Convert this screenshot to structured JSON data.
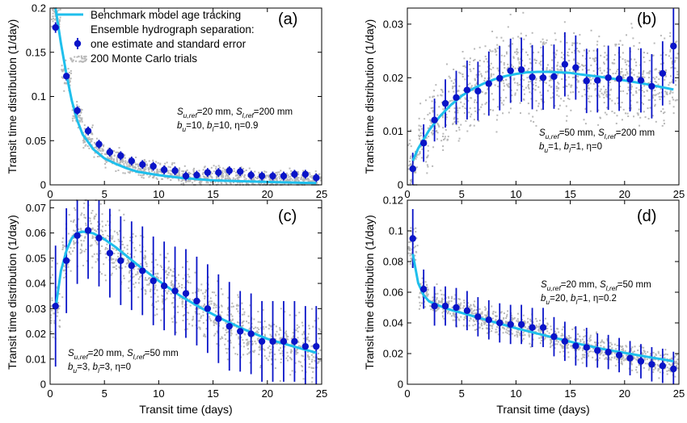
{
  "colors": {
    "benchmark": "#1fbfec",
    "estimate": "#0a14c8",
    "monte_carlo": "#b8b8b8"
  },
  "legend": {
    "benchmark": "Benchmark model age tracking",
    "group_title": "Ensemble hydrograph separation:",
    "estimate": "one estimate and standard error",
    "monte_carlo": "200 Monte Carlo trials"
  },
  "chart_data": [
    {
      "type": "scatter",
      "panel": "(a)",
      "xlabel": "",
      "ylabel": "Transit time distribution (1/day)",
      "xlim": [
        0,
        25
      ],
      "ylim": [
        0,
        0.2
      ],
      "xticks": [
        0,
        5,
        10,
        15,
        20,
        25
      ],
      "yticks": [
        0,
        0.05,
        0.1,
        0.15,
        0.2
      ],
      "ytick_labels": [
        "0",
        "0.05",
        "0.1",
        "0.15",
        "0.2"
      ],
      "annotation": {
        "line1": [
          {
            "t": "S"
          },
          {
            "t": "u,ref",
            "sub": true
          },
          {
            "t": "=20 mm, "
          },
          {
            "t": "S"
          },
          {
            "t": "l,ref",
            "sub": true
          },
          {
            "t": "=200 mm"
          }
        ],
        "line2": [
          {
            "t": "b"
          },
          {
            "t": "u",
            "sub": true
          },
          {
            "t": "=10, "
          },
          {
            "t": "b"
          },
          {
            "t": "l",
            "sub": true
          },
          {
            "t": "=10, η=0.9"
          }
        ]
      },
      "benchmark_curve": {
        "x": [
          0.5,
          1.0,
          1.5,
          2.0,
          2.5,
          3.0,
          4.0,
          5.0,
          6.0,
          7.0,
          8.0,
          10.0,
          12.0,
          15.0,
          18.0,
          21.0,
          24.5
        ],
        "y": [
          0.2,
          0.16,
          0.125,
          0.095,
          0.073,
          0.057,
          0.04,
          0.03,
          0.024,
          0.019,
          0.015,
          0.011,
          0.008,
          0.005,
          0.004,
          0.003,
          0.002
        ]
      },
      "estimates": {
        "x": [
          0.5,
          1.5,
          2.5,
          3.5,
          4.5,
          5.5,
          6.5,
          7.5,
          8.5,
          9.5,
          10.5,
          11.5,
          12.5,
          13.5,
          14.5,
          15.5,
          16.5,
          17.5,
          18.5,
          19.5,
          20.5,
          21.5,
          22.5,
          23.5,
          24.5
        ],
        "y": [
          0.178,
          0.123,
          0.084,
          0.061,
          0.046,
          0.037,
          0.033,
          0.027,
          0.023,
          0.021,
          0.017,
          0.016,
          0.01,
          0.011,
          0.014,
          0.014,
          0.016,
          0.015,
          0.011,
          0.01,
          0.01,
          0.01,
          0.012,
          0.012,
          0.008
        ],
        "err": [
          0.006,
          0.005,
          0.005,
          0.005,
          0.005,
          0.005,
          0.005,
          0.005,
          0.005,
          0.005,
          0.005,
          0.005,
          0.005,
          0.005,
          0.005,
          0.005,
          0.005,
          0.005,
          0.005,
          0.005,
          0.005,
          0.005,
          0.005,
          0.005,
          0.005
        ]
      },
      "monte_carlo_spread": [
        0.012,
        0.014,
        0.012,
        0.011,
        0.01,
        0.01,
        0.01,
        0.009,
        0.009,
        0.009,
        0.009,
        0.009,
        0.009,
        0.009,
        0.009,
        0.009,
        0.009,
        0.009,
        0.009,
        0.009,
        0.009,
        0.009,
        0.009,
        0.009,
        0.009
      ]
    },
    {
      "type": "scatter",
      "panel": "(b)",
      "xlabel": "",
      "ylabel": "Transit time distribution (1/day)",
      "xlim": [
        0,
        25
      ],
      "ylim": [
        0,
        0.033
      ],
      "xticks": [
        0,
        5,
        10,
        15,
        20,
        25
      ],
      "yticks": [
        0,
        0.01,
        0.02,
        0.03
      ],
      "ytick_labels": [
        "0",
        "0.01",
        "0.02",
        "0.03"
      ],
      "annotation": {
        "line1": [
          {
            "t": "S"
          },
          {
            "t": "u,ref",
            "sub": true
          },
          {
            "t": "=50 mm, "
          },
          {
            "t": "S"
          },
          {
            "t": "l,ref",
            "sub": true
          },
          {
            "t": "=200 mm"
          }
        ],
        "line2": [
          {
            "t": "b"
          },
          {
            "t": "u",
            "sub": true
          },
          {
            "t": "=1, "
          },
          {
            "t": "b"
          },
          {
            "t": "l",
            "sub": true
          },
          {
            "t": "=1, η=0"
          }
        ]
      },
      "benchmark_curve": {
        "x": [
          0.5,
          1.0,
          2.0,
          3.0,
          4.0,
          5.0,
          6.0,
          7.0,
          8.0,
          9.0,
          10.0,
          11.0,
          12.0,
          13.0,
          14.0,
          15.0,
          16.0,
          18.0,
          20.0,
          22.0,
          24.5
        ],
        "y": [
          0.0045,
          0.0068,
          0.0102,
          0.0128,
          0.0149,
          0.0166,
          0.0179,
          0.0189,
          0.0197,
          0.0203,
          0.0207,
          0.021,
          0.0211,
          0.0211,
          0.021,
          0.0209,
          0.0206,
          0.0201,
          0.0195,
          0.0188,
          0.0178
        ]
      },
      "estimates": {
        "x": [
          0.5,
          1.5,
          2.5,
          3.5,
          4.5,
          5.5,
          6.5,
          7.5,
          8.5,
          9.5,
          10.5,
          11.5,
          12.5,
          13.5,
          14.5,
          15.5,
          16.5,
          17.5,
          18.5,
          19.5,
          20.5,
          21.5,
          22.5,
          23.5,
          24.5
        ],
        "y": [
          0.003,
          0.0078,
          0.0121,
          0.0152,
          0.0163,
          0.0177,
          0.0175,
          0.0189,
          0.0199,
          0.0213,
          0.0215,
          0.0201,
          0.02,
          0.0202,
          0.0225,
          0.0219,
          0.0194,
          0.0195,
          0.02,
          0.0198,
          0.0197,
          0.0195,
          0.0184,
          0.0208,
          0.0259
        ],
        "err": [
          0.003,
          0.0035,
          0.004,
          0.0045,
          0.005,
          0.0055,
          0.0055,
          0.006,
          0.006,
          0.006,
          0.006,
          0.006,
          0.006,
          0.006,
          0.006,
          0.006,
          0.006,
          0.006,
          0.006,
          0.006,
          0.006,
          0.006,
          0.006,
          0.006,
          0.007
        ]
      },
      "monte_carlo_spread": [
        0.004,
        0.005,
        0.006,
        0.006,
        0.006,
        0.007,
        0.007,
        0.007,
        0.007,
        0.007,
        0.007,
        0.007,
        0.007,
        0.007,
        0.007,
        0.007,
        0.007,
        0.007,
        0.007,
        0.007,
        0.007,
        0.007,
        0.007,
        0.007,
        0.008
      ]
    },
    {
      "type": "scatter",
      "panel": "(c)",
      "xlabel": "Transit time (days)",
      "ylabel": "Transit time distribution (1/day)",
      "xlim": [
        0,
        25
      ],
      "ylim": [
        0,
        0.073
      ],
      "xticks": [
        0,
        5,
        10,
        15,
        20,
        25
      ],
      "yticks": [
        0,
        0.01,
        0.02,
        0.03,
        0.04,
        0.05,
        0.06,
        0.07
      ],
      "ytick_labels": [
        "0",
        "0.01",
        "0.02",
        "0.03",
        "0.04",
        "0.05",
        "0.06",
        "0.07"
      ],
      "annotation": {
        "line1": [
          {
            "t": "S"
          },
          {
            "t": "u,ref",
            "sub": true
          },
          {
            "t": "=20 mm, "
          },
          {
            "t": "S"
          },
          {
            "t": "l,ref",
            "sub": true
          },
          {
            "t": "=50 mm"
          }
        ],
        "line2": [
          {
            "t": "b"
          },
          {
            "t": "u",
            "sub": true
          },
          {
            "t": "=3, "
          },
          {
            "t": "b"
          },
          {
            "t": "l",
            "sub": true
          },
          {
            "t": "=3, η=0"
          }
        ]
      },
      "benchmark_curve": {
        "x": [
          0.5,
          1.0,
          1.5,
          2.0,
          2.5,
          3.0,
          3.5,
          4.0,
          5.0,
          6.0,
          7.0,
          8.0,
          10.0,
          12.0,
          14.0,
          16.0,
          18.0,
          20.0,
          22.0,
          24.5
        ],
        "y": [
          0.03,
          0.045,
          0.053,
          0.058,
          0.06,
          0.0605,
          0.0603,
          0.0598,
          0.0575,
          0.0545,
          0.051,
          0.0475,
          0.041,
          0.035,
          0.03,
          0.0255,
          0.0215,
          0.018,
          0.0155,
          0.0125
        ]
      },
      "estimates": {
        "x": [
          0.5,
          1.5,
          2.5,
          3.5,
          4.5,
          5.5,
          6.5,
          7.5,
          8.5,
          9.5,
          10.5,
          11.5,
          12.5,
          13.5,
          14.5,
          15.5,
          16.5,
          17.5,
          18.5,
          19.5,
          20.5,
          21.5,
          22.5,
          23.5,
          24.5
        ],
        "y": [
          0.031,
          0.049,
          0.059,
          0.061,
          0.058,
          0.052,
          0.049,
          0.047,
          0.045,
          0.041,
          0.039,
          0.037,
          0.036,
          0.033,
          0.03,
          0.026,
          0.023,
          0.021,
          0.02,
          0.017,
          0.017,
          0.017,
          0.017,
          0.015,
          0.015
        ]
      },
      "monte_carlo_spread": [
        0.015,
        0.013,
        0.012,
        0.012,
        0.012,
        0.011,
        0.011,
        0.011,
        0.011,
        0.011,
        0.011,
        0.011,
        0.011,
        0.011,
        0.011,
        0.011,
        0.011,
        0.01,
        0.01,
        0.01,
        0.01,
        0.01,
        0.01,
        0.01,
        0.01
      ]
    },
    {
      "type": "scatter",
      "panel": "(d)",
      "xlabel": "Transit time (days)",
      "ylabel": "Transit time distribution (1/day)",
      "xlim": [
        0,
        25
      ],
      "ylim": [
        0,
        0.12
      ],
      "xticks": [
        0,
        5,
        10,
        15,
        20,
        25
      ],
      "yticks": [
        0,
        0.02,
        0.04,
        0.06,
        0.08,
        0.1,
        0.12
      ],
      "ytick_labels": [
        "0",
        "0.02",
        "0.04",
        "0.06",
        "0.08",
        "0.1",
        "0.12"
      ],
      "annotation": {
        "line1": [
          {
            "t": "S"
          },
          {
            "t": "u,ref",
            "sub": true
          },
          {
            "t": "=20 mm, "
          },
          {
            "t": "S"
          },
          {
            "t": "l,ref",
            "sub": true
          },
          {
            "t": "=50 mm"
          }
        ],
        "line2": [
          {
            "t": "b"
          },
          {
            "t": "u",
            "sub": true
          },
          {
            "t": "=20, "
          },
          {
            "t": "b"
          },
          {
            "t": "l",
            "sub": true
          },
          {
            "t": "=1, η=0.2"
          }
        ]
      },
      "benchmark_curve": {
        "x": [
          0.5,
          1.0,
          1.5,
          2.0,
          2.5,
          3.0,
          4.0,
          5.0,
          6.0,
          8.0,
          10.0,
          12.0,
          14.0,
          16.0,
          18.0,
          20.0,
          22.0,
          24.5
        ],
        "y": [
          0.085,
          0.066,
          0.058,
          0.054,
          0.0525,
          0.051,
          0.0485,
          0.0465,
          0.0445,
          0.0405,
          0.0365,
          0.033,
          0.0295,
          0.026,
          0.023,
          0.0205,
          0.018,
          0.015
        ]
      },
      "estimates": {
        "x": [
          0.5,
          1.5,
          2.5,
          3.5,
          4.5,
          5.5,
          6.5,
          7.5,
          8.5,
          9.5,
          10.5,
          11.5,
          12.5,
          13.5,
          14.5,
          15.5,
          16.5,
          17.5,
          18.5,
          19.5,
          20.5,
          21.5,
          22.5,
          23.5,
          24.5
        ],
        "y": [
          0.095,
          0.062,
          0.051,
          0.051,
          0.05,
          0.048,
          0.044,
          0.042,
          0.04,
          0.039,
          0.039,
          0.037,
          0.037,
          0.031,
          0.028,
          0.025,
          0.024,
          0.022,
          0.021,
          0.019,
          0.017,
          0.015,
          0.013,
          0.012,
          0.01
        ]
      },
      "monte_carlo_spread": [
        0.012,
        0.008,
        0.008,
        0.008,
        0.008,
        0.008,
        0.008,
        0.008,
        0.008,
        0.008,
        0.008,
        0.008,
        0.008,
        0.008,
        0.008,
        0.008,
        0.008,
        0.007,
        0.007,
        0.007,
        0.007,
        0.007,
        0.007,
        0.007,
        0.007
      ]
    }
  ]
}
